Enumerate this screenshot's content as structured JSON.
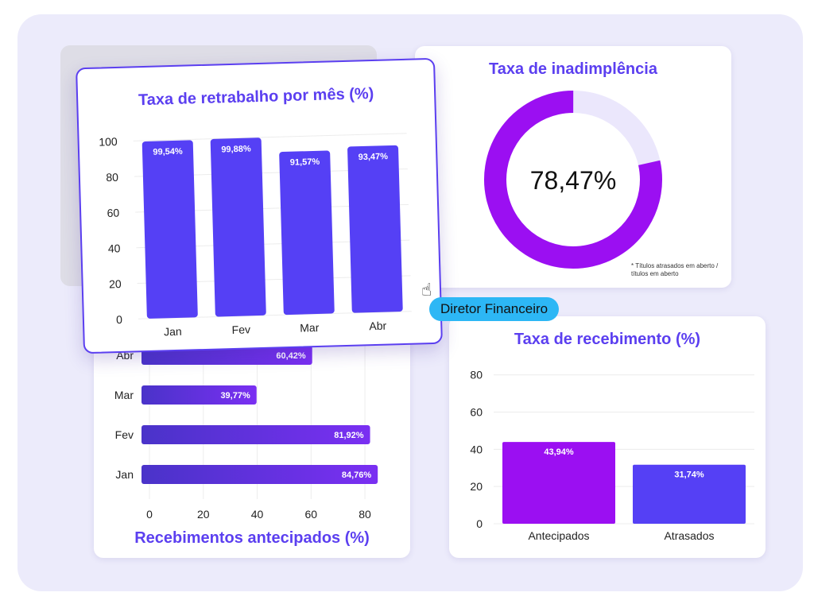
{
  "colors": {
    "accent": "#5b3ff0",
    "bar_blue": "#5540f5",
    "bar_purple": "#9b0ff2",
    "badge": "#2db7f5",
    "track": "#ebe7fc"
  },
  "badge": {
    "label": "Diretor Financeiro",
    "icon": "hand-cursor-icon"
  },
  "charts": [
    {
      "type": "bar",
      "title": "Taxa de retrabalho por mês (%)",
      "categories": [
        "Jan",
        "Fev",
        "Mar",
        "Abr"
      ],
      "values": [
        99.54,
        99.88,
        91.57,
        93.47
      ],
      "value_labels": [
        "99,54%",
        "99,88%",
        "91,57%",
        "93,47%"
      ],
      "ylim": [
        0,
        100
      ],
      "yticks": [
        "0",
        "20",
        "40",
        "60",
        "80",
        "100"
      ],
      "grid": true
    },
    {
      "type": "pie",
      "title": "Taxa de inadimplência",
      "value": 78.47,
      "value_label": "78,47%",
      "footnote": "* Títulos atrasados em aberto / títulos em aberto"
    },
    {
      "type": "bar",
      "orientation": "horizontal",
      "title": "Recebimentos antecipados (%)",
      "categories": [
        "Abr",
        "Mar",
        "Fev",
        "Jan"
      ],
      "values": [
        60.42,
        39.77,
        81.92,
        84.76
      ],
      "value_labels": [
        "60,42%",
        "39,77%",
        "81,92%",
        "84,76%"
      ],
      "xlim": [
        0,
        85
      ],
      "xticks": [
        "0",
        "20",
        "40",
        "60",
        "80"
      ],
      "grid": true
    },
    {
      "type": "bar",
      "title": "Taxa de recebimento (%)",
      "categories": [
        "Antecipados",
        "Atrasados"
      ],
      "values": [
        43.94,
        31.74
      ],
      "value_labels": [
        "43,94%",
        "31,74%"
      ],
      "ylim": [
        0,
        85
      ],
      "yticks": [
        "0",
        "20",
        "40",
        "60",
        "80"
      ],
      "grid": true
    }
  ]
}
